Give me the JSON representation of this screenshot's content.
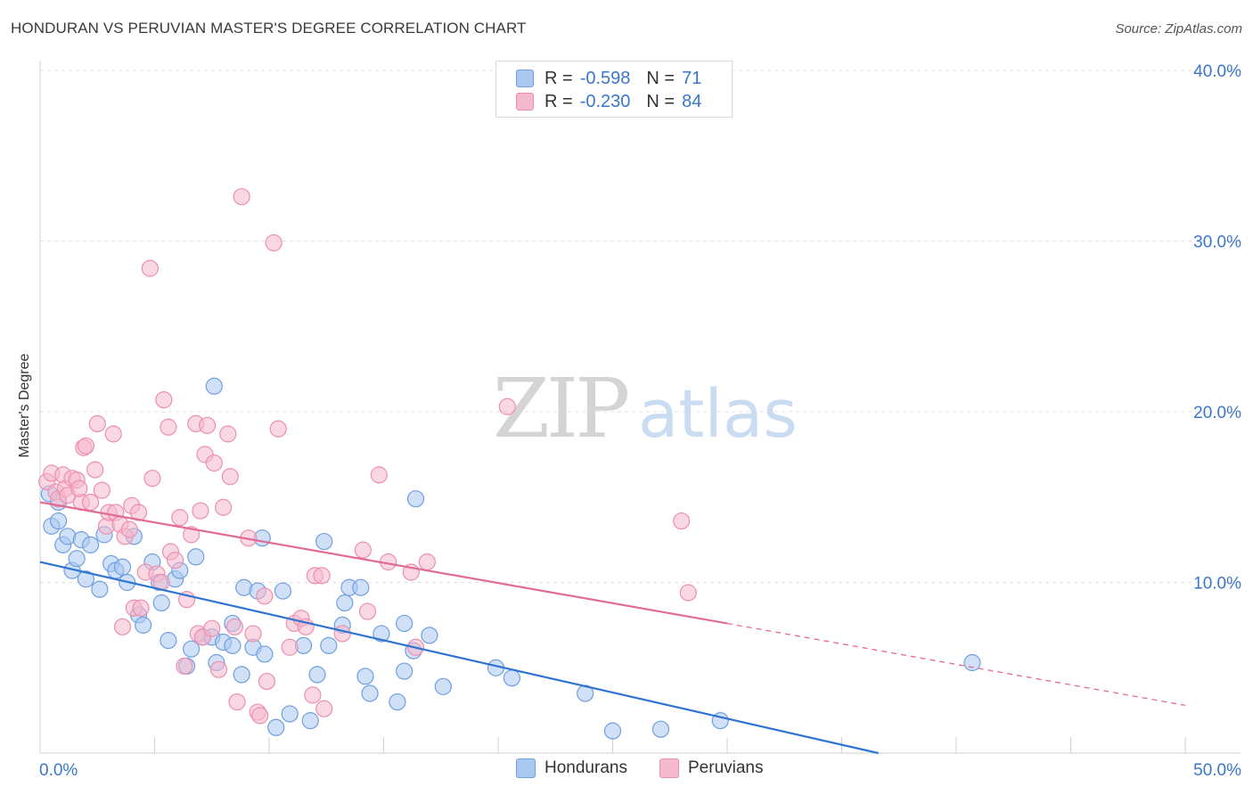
{
  "title": "HONDURAN VS PERUVIAN MASTER'S DEGREE CORRELATION CHART",
  "source": "Source: ZipAtlas.com",
  "watermark": {
    "zip": "ZIP",
    "atlas": "atlas"
  },
  "legend": {
    "rows": [
      {
        "r_label": "R =",
        "r_value": "-0.598",
        "n_label": "N =",
        "n_value": "71"
      },
      {
        "r_label": "R =",
        "r_value": "-0.230",
        "n_label": "N =",
        "n_value": "84"
      }
    ]
  },
  "bottom_legend": {
    "hondurans": "Hondurans",
    "peruvians": "Peruvians"
  },
  "colors": {
    "blue_fill": "#a9c8f0",
    "blue_stroke": "#6f9fe0",
    "blue_line": "#2f74d0",
    "pink_fill": "#f6b8cc",
    "pink_stroke": "#ec8fad",
    "pink_line": "#e26b95",
    "axis_text": "#3a76c9",
    "grid": "#e0e0e0"
  },
  "chart_data": {
    "type": "scatter",
    "title": "HONDURAN VS PERUVIAN MASTER'S DEGREE CORRELATION CHART",
    "xlabel": "",
    "ylabel": "Master's Degree",
    "xlim": [
      0,
      50
    ],
    "ylim": [
      0,
      40
    ],
    "x_tick_labels": [
      "0.0%",
      "50.0%"
    ],
    "y_ticks": [
      10,
      20,
      30,
      40
    ],
    "y_tick_labels": [
      "10.0%",
      "20.0%",
      "30.0%",
      "40.0%"
    ],
    "grid": true,
    "legend_position": "top-center",
    "series": [
      {
        "name": "Hondurans",
        "R": -0.598,
        "N": 71,
        "trend": {
          "x0": 0,
          "y0": 11.2,
          "x1": 36.6,
          "y1": 0,
          "dashed_to": null
        },
        "points": [
          [
            0.5,
            13.3
          ],
          [
            0.8,
            14.7
          ],
          [
            0.8,
            13.6
          ],
          [
            1.0,
            12.2
          ],
          [
            1.2,
            12.7
          ],
          [
            1.4,
            10.7
          ],
          [
            1.6,
            11.4
          ],
          [
            1.8,
            12.5
          ],
          [
            2.0,
            10.2
          ],
          [
            2.2,
            12.2
          ],
          [
            2.6,
            9.6
          ],
          [
            2.8,
            12.8
          ],
          [
            3.1,
            11.1
          ],
          [
            3.3,
            10.7
          ],
          [
            3.6,
            10.9
          ],
          [
            3.8,
            10.0
          ],
          [
            4.1,
            12.7
          ],
          [
            4.3,
            8.1
          ],
          [
            4.5,
            7.5
          ],
          [
            4.9,
            11.2
          ],
          [
            5.2,
            10.0
          ],
          [
            5.3,
            8.8
          ],
          [
            5.6,
            6.6
          ],
          [
            5.9,
            10.2
          ],
          [
            6.1,
            10.7
          ],
          [
            6.4,
            5.1
          ],
          [
            6.6,
            6.1
          ],
          [
            6.8,
            11.5
          ],
          [
            7.1,
            6.8
          ],
          [
            7.5,
            6.8
          ],
          [
            7.6,
            21.5
          ],
          [
            7.7,
            5.3
          ],
          [
            8.0,
            6.5
          ],
          [
            8.4,
            7.6
          ],
          [
            8.4,
            6.3
          ],
          [
            8.8,
            4.6
          ],
          [
            8.9,
            9.7
          ],
          [
            9.3,
            6.2
          ],
          [
            9.5,
            9.5
          ],
          [
            9.7,
            12.6
          ],
          [
            9.8,
            5.8
          ],
          [
            10.3,
            1.5
          ],
          [
            10.6,
            9.5
          ],
          [
            10.9,
            2.3
          ],
          [
            11.5,
            6.3
          ],
          [
            11.8,
            1.9
          ],
          [
            12.1,
            4.6
          ],
          [
            12.4,
            12.4
          ],
          [
            12.6,
            6.3
          ],
          [
            13.2,
            7.5
          ],
          [
            13.3,
            8.8
          ],
          [
            13.5,
            9.7
          ],
          [
            14.0,
            9.7
          ],
          [
            14.2,
            4.5
          ],
          [
            14.4,
            3.5
          ],
          [
            14.9,
            7.0
          ],
          [
            15.6,
            3.0
          ],
          [
            15.9,
            7.6
          ],
          [
            15.9,
            4.8
          ],
          [
            16.3,
            6.0
          ],
          [
            16.4,
            14.9
          ],
          [
            17.0,
            6.9
          ],
          [
            17.6,
            3.9
          ],
          [
            19.9,
            5.0
          ],
          [
            20.6,
            4.4
          ],
          [
            23.8,
            3.5
          ],
          [
            25.0,
            1.3
          ],
          [
            27.1,
            1.4
          ],
          [
            29.7,
            1.9
          ],
          [
            40.7,
            5.3
          ],
          [
            0.4,
            15.2
          ]
        ]
      },
      {
        "name": "Peruvians",
        "R": -0.23,
        "N": 84,
        "trend": {
          "x0": 0,
          "y0": 14.7,
          "x1": 30.0,
          "y1": 7.6,
          "dashed_to": [
            50,
            2.8
          ]
        },
        "points": [
          [
            0.3,
            15.9
          ],
          [
            0.5,
            16.4
          ],
          [
            0.7,
            15.3
          ],
          [
            0.8,
            14.9
          ],
          [
            1.0,
            16.3
          ],
          [
            1.1,
            15.5
          ],
          [
            1.2,
            15.1
          ],
          [
            1.4,
            16.1
          ],
          [
            1.6,
            16.0
          ],
          [
            1.8,
            14.7
          ],
          [
            1.9,
            17.9
          ],
          [
            2.0,
            18.0
          ],
          [
            2.2,
            14.7
          ],
          [
            2.4,
            16.6
          ],
          [
            2.5,
            19.3
          ],
          [
            2.7,
            15.4
          ],
          [
            2.9,
            13.3
          ],
          [
            3.0,
            14.1
          ],
          [
            3.2,
            18.7
          ],
          [
            3.3,
            14.1
          ],
          [
            3.5,
            13.4
          ],
          [
            3.6,
            7.4
          ],
          [
            3.7,
            12.7
          ],
          [
            3.9,
            13.1
          ],
          [
            4.0,
            14.5
          ],
          [
            4.1,
            8.5
          ],
          [
            4.3,
            14.1
          ],
          [
            4.4,
            8.5
          ],
          [
            4.6,
            10.6
          ],
          [
            4.8,
            28.4
          ],
          [
            4.9,
            16.1
          ],
          [
            5.1,
            10.5
          ],
          [
            5.3,
            10.0
          ],
          [
            5.4,
            20.7
          ],
          [
            5.6,
            19.1
          ],
          [
            5.7,
            11.8
          ],
          [
            5.9,
            11.3
          ],
          [
            6.1,
            13.8
          ],
          [
            6.3,
            5.1
          ],
          [
            6.4,
            9.0
          ],
          [
            6.6,
            12.8
          ],
          [
            6.8,
            19.3
          ],
          [
            6.9,
            7.0
          ],
          [
            7.0,
            14.2
          ],
          [
            7.1,
            6.8
          ],
          [
            7.2,
            17.5
          ],
          [
            7.3,
            19.2
          ],
          [
            7.5,
            7.3
          ],
          [
            7.6,
            17.0
          ],
          [
            7.8,
            4.9
          ],
          [
            8.0,
            14.4
          ],
          [
            8.2,
            18.7
          ],
          [
            8.3,
            16.2
          ],
          [
            8.5,
            7.4
          ],
          [
            8.6,
            3.0
          ],
          [
            8.8,
            32.6
          ],
          [
            9.1,
            12.6
          ],
          [
            9.3,
            7.0
          ],
          [
            9.5,
            2.4
          ],
          [
            9.6,
            2.2
          ],
          [
            9.8,
            9.2
          ],
          [
            9.9,
            4.2
          ],
          [
            10.2,
            29.9
          ],
          [
            10.4,
            19.0
          ],
          [
            10.9,
            6.2
          ],
          [
            11.1,
            7.6
          ],
          [
            11.4,
            7.9
          ],
          [
            11.6,
            7.4
          ],
          [
            11.9,
            3.4
          ],
          [
            12.0,
            10.4
          ],
          [
            12.3,
            10.4
          ],
          [
            12.4,
            2.6
          ],
          [
            13.2,
            7.0
          ],
          [
            14.1,
            11.9
          ],
          [
            14.3,
            8.3
          ],
          [
            14.8,
            16.3
          ],
          [
            15.2,
            11.2
          ],
          [
            16.2,
            10.6
          ],
          [
            16.4,
            6.2
          ],
          [
            16.9,
            11.2
          ],
          [
            20.4,
            20.3
          ],
          [
            28.0,
            13.6
          ],
          [
            28.3,
            9.4
          ],
          [
            1.7,
            15.5
          ]
        ]
      }
    ]
  }
}
